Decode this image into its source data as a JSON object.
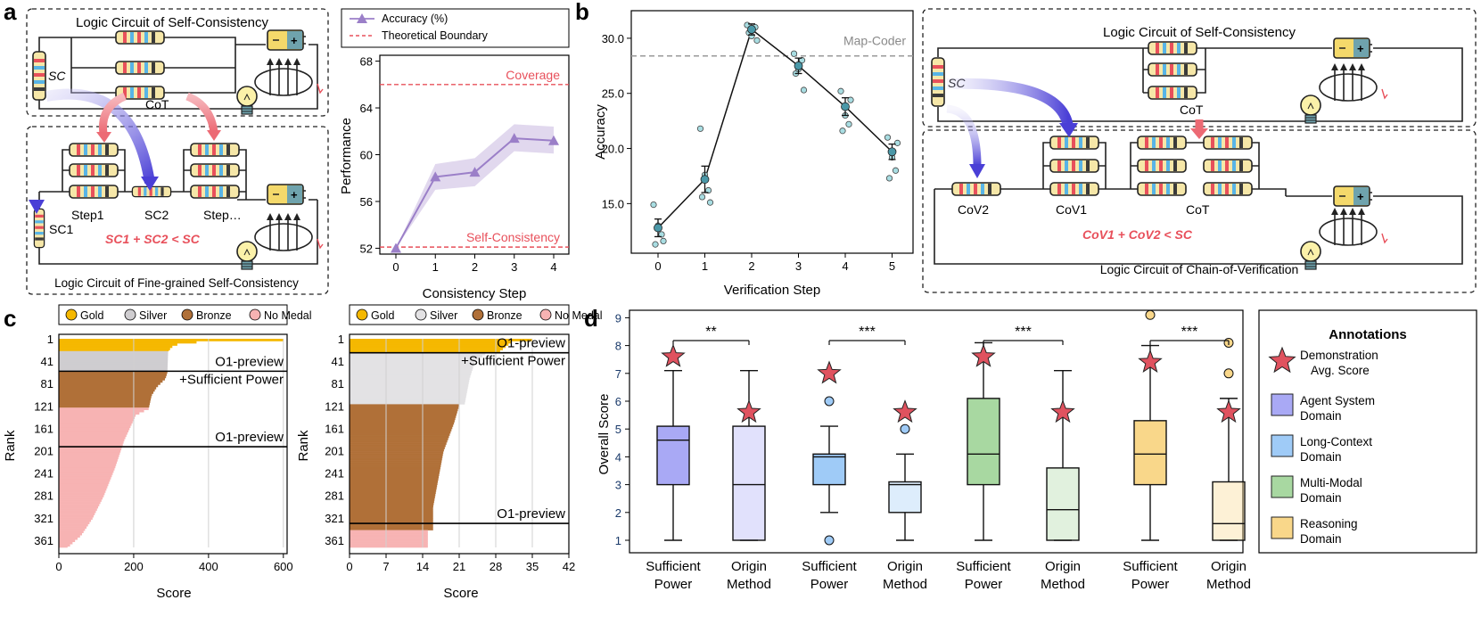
{
  "panels": {
    "a": "a",
    "b": "b",
    "c": "c",
    "d": "d"
  },
  "panel_a": {
    "top_circuit_title": "Logic Circuit of Self-Consistency",
    "bottom_circuit_title": "Logic Circuit of Fine-grained Self-Consistency",
    "sc_label": "SC",
    "cot_label": "CoT",
    "sc1_label": "SC1",
    "sc2_label": "SC2",
    "step1_label": "Step1",
    "stepn_label": "Step…",
    "equation": "SC1 + SC2 < SC",
    "battery_plus": "+"
  },
  "panel_b": {
    "top_circuit_title": "Logic Circuit of Self-Consistency",
    "bottom_circuit_title": "Logic Circuit of Chain-of-Verification",
    "sc_label": "SC",
    "cot_top_label": "CoT",
    "cov2_label": "CoV2",
    "cov1_label": "CoV1",
    "cot_label": "CoT",
    "equation": "CoV1 + CoV2 < SC",
    "battery_plus": "+"
  },
  "chart_data": [
    {
      "id": "a-line",
      "type": "line",
      "title": "",
      "xlabel": "Consistency Step",
      "ylabel": "Performance",
      "x": [
        0,
        1,
        2,
        3,
        4
      ],
      "xticks": [
        "0",
        "1",
        "2",
        "3",
        "4"
      ],
      "yticks": [
        "52",
        "56",
        "60",
        "64",
        "68"
      ],
      "ylim": [
        51.5,
        68.5
      ],
      "series": [
        {
          "name": "Accuracy (%)",
          "values": [
            52.0,
            58.1,
            58.5,
            61.4,
            61.2
          ],
          "band_low": [
            52.0,
            57.0,
            57.3,
            60.3,
            60.1
          ],
          "band_high": [
            52.0,
            59.2,
            59.7,
            62.6,
            62.4
          ],
          "color": "#9b7fc8"
        }
      ],
      "references": [
        {
          "name": "Theoretical Boundary",
          "value": 66.0,
          "label": "Coverage",
          "color": "#e8505b"
        },
        {
          "name": "Theoretical Boundary",
          "value": 52.1,
          "label": "Self-Consistency",
          "color": "#e8505b"
        }
      ],
      "legend": [
        "Accuracy (%)",
        "Theoretical Boundary"
      ]
    },
    {
      "id": "b-scatter",
      "type": "scatter",
      "xlabel": "Verification Step",
      "ylabel": "Accuracy",
      "xticks": [
        "0",
        "1",
        "2",
        "3",
        "4",
        "5"
      ],
      "yticks": [
        "15.0",
        "20.0",
        "25.0",
        "30.0"
      ],
      "ylim": [
        10.5,
        32.5
      ],
      "reference": {
        "label": "Map-Coder",
        "value": 28.4
      },
      "means": [
        12.8,
        17.2,
        30.8,
        27.5,
        23.8,
        19.7
      ],
      "errors": [
        0.8,
        1.2,
        0.5,
        0.7,
        0.8,
        0.7
      ],
      "points": [
        [
          14.9,
          12.2,
          11.3,
          11.6,
          13.0
        ],
        [
          21.8,
          16.2,
          15.6,
          15.1,
          17.6
        ],
        [
          31.2,
          31.0,
          30.5,
          29.8,
          30.2
        ],
        [
          28.6,
          28.0,
          26.8,
          25.3,
          27.2
        ],
        [
          25.2,
          22.2,
          21.6,
          24.4,
          23.0
        ],
        [
          21.0,
          18.0,
          17.3,
          20.5,
          19.2
        ]
      ]
    },
    {
      "id": "c-left",
      "type": "bar",
      "orientation": "horizontal",
      "xlabel": "Score",
      "ylabel": "Rank",
      "xticks": [
        "0",
        "200",
        "400",
        "600"
      ],
      "xlim": [
        0,
        610
      ],
      "yticks": [
        "1",
        "41",
        "81",
        "121",
        "161",
        "201",
        "241",
        "281",
        "321",
        "361"
      ],
      "legend": [
        "Gold",
        "Silver",
        "Bronze",
        "No Medal"
      ],
      "bands": [
        {
          "name": "Gold",
          "from_rank": 1,
          "to_rank": 23,
          "color": "#f5b800",
          "profile": [
            [
              1,
              600
            ],
            [
              3,
              400
            ],
            [
              8,
              320
            ],
            [
              14,
              300
            ],
            [
              23,
              292
            ]
          ]
        },
        {
          "name": "Silver",
          "from_rank": 23,
          "to_rank": 59,
          "color": "#cfcdd0",
          "profile": [
            [
              23,
              292
            ],
            [
              59,
              290
            ]
          ]
        },
        {
          "name": "Bronze",
          "from_rank": 59,
          "to_rank": 124,
          "color": "#b07038",
          "profile": [
            [
              59,
              290
            ],
            [
              70,
              285
            ],
            [
              85,
              262
            ],
            [
              100,
              248
            ],
            [
              124,
              240
            ]
          ]
        },
        {
          "name": "No Medal",
          "from_rank": 124,
          "to_rank": 374,
          "color": "#f7b3b3",
          "profile": [
            [
              124,
              240
            ],
            [
              135,
              206
            ],
            [
              180,
              175
            ],
            [
              230,
              150
            ],
            [
              280,
              120
            ],
            [
              320,
              90
            ],
            [
              350,
              60
            ],
            [
              374,
              20
            ]
          ]
        }
      ],
      "markers": [
        {
          "label": "O1-preview\n+Sufficient Power",
          "rank": 59
        },
        {
          "label": "O1-preview",
          "rank": 194
        }
      ]
    },
    {
      "id": "c-right",
      "type": "bar",
      "orientation": "horizontal",
      "xlabel": "Score",
      "ylabel": "Rank",
      "xticks": [
        "0",
        "7",
        "14",
        "21",
        "28",
        "35",
        "42"
      ],
      "xlim": [
        0,
        42
      ],
      "yticks": [
        "1",
        "41",
        "81",
        "121",
        "161",
        "201",
        "241",
        "281",
        "321",
        "361"
      ],
      "legend": [
        "Gold",
        "Silver",
        "Bronze",
        "No Medal"
      ],
      "bands": [
        {
          "name": "Gold",
          "from_rank": 1,
          "to_rank": 26,
          "color": "#f5b800",
          "profile": [
            [
              1,
              35
            ],
            [
              5,
              31
            ],
            [
              12,
              30
            ],
            [
              20,
              29
            ],
            [
              26,
              28
            ]
          ]
        },
        {
          "name": "Silver",
          "from_rank": 26,
          "to_rank": 118,
          "color": "#e3e2e4",
          "profile": [
            [
              26,
              26
            ],
            [
              40,
              24
            ],
            [
              70,
              23
            ],
            [
              118,
              22
            ]
          ]
        },
        {
          "name": "Bronze",
          "from_rank": 118,
          "to_rank": 343,
          "color": "#b07038",
          "profile": [
            [
              118,
              21
            ],
            [
              150,
              20
            ],
            [
              200,
              18
            ],
            [
              250,
              17
            ],
            [
              300,
              16
            ],
            [
              343,
              16
            ]
          ]
        },
        {
          "name": "No Medal",
          "from_rank": 343,
          "to_rank": 374,
          "color": "#f7b3b3",
          "profile": [
            [
              343,
              15
            ],
            [
              374,
              15
            ]
          ]
        }
      ],
      "markers": [
        {
          "label": "O1-preview\n+Sufficient Power",
          "rank": 26
        },
        {
          "label": "O1-preview",
          "rank": 331
        }
      ]
    },
    {
      "id": "d-box",
      "type": "box",
      "ylabel": "Overall Score",
      "yticks": [
        "1",
        "2",
        "3",
        "4",
        "5",
        "6",
        "7",
        "8",
        "9"
      ],
      "ylim": [
        1,
        9
      ],
      "categories": [
        "Sufficient Power",
        "Origin Method",
        "Sufficient Power",
        "Origin Method",
        "Sufficient Power",
        "Origin Method",
        "Sufficient Power",
        "Origin Method"
      ],
      "xlabels": [
        [
          "Sufficient",
          "Power"
        ],
        [
          "Origin",
          "Method"
        ],
        [
          "Sufficient",
          "Power"
        ],
        [
          "Origin",
          "Method"
        ],
        [
          "Sufficient",
          "Power"
        ],
        [
          "Origin",
          "Method"
        ],
        [
          "Sufficient",
          "Power"
        ],
        [
          "Origin",
          "Method"
        ]
      ],
      "boxes": [
        {
          "domain": "Agent System Domain",
          "min": 1,
          "q1": 3,
          "median": 4.6,
          "q3": 5.1,
          "max": 7.1,
          "outliers": [],
          "demo": 7.6
        },
        {
          "domain": "Agent System Domain",
          "min": 1,
          "q1": 1,
          "median": 3.0,
          "q3": 5.1,
          "max": 7.1,
          "outliers": [],
          "demo": 5.6
        },
        {
          "domain": "Long-Context Domain",
          "min": 2,
          "q1": 3,
          "median": 4.0,
          "q3": 4.1,
          "max": 5.1,
          "outliers": [
            6,
            1
          ],
          "demo": 7.0
        },
        {
          "domain": "Long-Context Domain",
          "min": 1,
          "q1": 2,
          "median": 3.0,
          "q3": 3.1,
          "max": 4.1,
          "outliers": [
            5
          ],
          "demo": 5.6
        },
        {
          "domain": "Multi-Modal Domain",
          "min": 1,
          "q1": 3,
          "median": 4.1,
          "q3": 6.1,
          "max": 8.1,
          "outliers": [],
          "demo": 7.6
        },
        {
          "domain": "Multi-Modal Domain",
          "min": 1,
          "q1": 1,
          "median": 2.1,
          "q3": 3.6,
          "max": 7.1,
          "outliers": [],
          "demo": 5.6
        },
        {
          "domain": "Reasoning Domain",
          "min": 1,
          "q1": 3,
          "median": 4.1,
          "q3": 5.3,
          "max": 8.0,
          "outliers": [
            9.1
          ],
          "demo": 7.4
        },
        {
          "domain": "Reasoning Domain",
          "min": 1,
          "q1": 1,
          "median": 1.6,
          "q3": 3.1,
          "max": 6.1,
          "outliers": [
            8.1,
            7.0
          ],
          "demo": 5.6
        }
      ],
      "significance": [
        "**",
        "***",
        "***",
        "***"
      ],
      "legend_title": "Annotations",
      "legend": [
        {
          "label": "Demonstration Avg. Score",
          "lines": [
            "Demonstration",
            "Avg. Score"
          ],
          "kind": "star",
          "color": "#e0525f"
        },
        {
          "label": "Agent System Domain",
          "lines": [
            "Agent System",
            "Domain"
          ],
          "kind": "box",
          "color": "#a9a9f5"
        },
        {
          "label": "Long-Context Domain",
          "lines": [
            "Long-Context",
            "Domain"
          ],
          "kind": "box",
          "color": "#9fcbf7"
        },
        {
          "label": "Multi-Modal Domain",
          "lines": [
            "Multi-Modal",
            "Domain"
          ],
          "kind": "box",
          "color": "#a8d8a1"
        },
        {
          "label": "Reasoning Domain",
          "lines": [
            "Reasoning",
            "Domain"
          ],
          "kind": "box",
          "color": "#f9d78a"
        }
      ]
    }
  ]
}
